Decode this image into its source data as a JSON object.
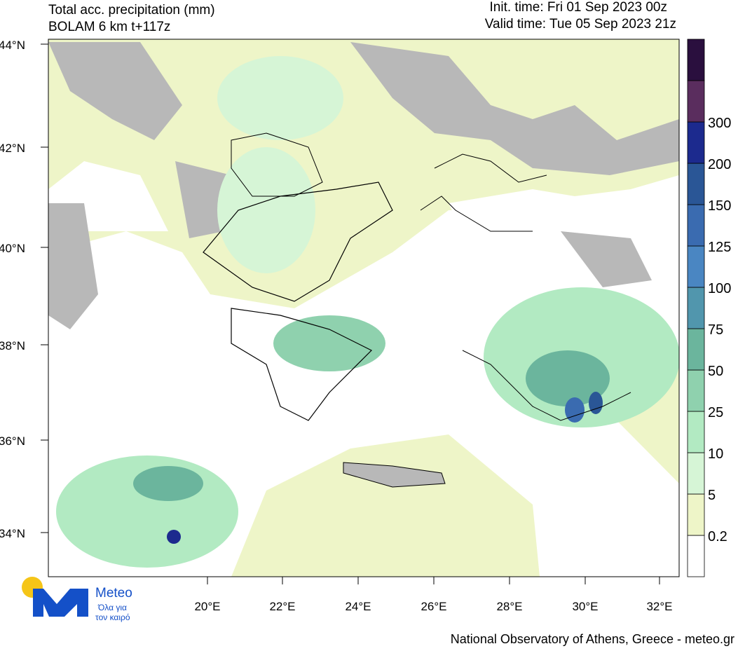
{
  "header": {
    "title": "Total acc. precipitation (mm)",
    "model": "BOLAM 6 km t+117z",
    "init_time": "Init. time: Fri 01 Sep 2023 00z",
    "valid_time": "Valid time: Tue 05 Sep 2023 21z"
  },
  "lat_ticks": [
    "44°N",
    "42°N",
    "40°N",
    "38°N",
    "36°N",
    "34°N"
  ],
  "lon_ticks": [
    "20°E",
    "22°E",
    "24°E",
    "26°E",
    "28°E",
    "30°E",
    "32°E"
  ],
  "colorbar": {
    "labels": [
      "0.2",
      "5",
      "10",
      "25",
      "50",
      "75",
      "100",
      "125",
      "150",
      "200",
      "300"
    ],
    "colors": [
      "#ffffff",
      "#eef5c8",
      "#d6f5d6",
      "#b2eac2",
      "#8fd1ae",
      "#6bb59d",
      "#5196ad",
      "#4a86c2",
      "#3a6bb0",
      "#2a5696",
      "#1c2a8e",
      "#5a2d5e",
      "#2a0f3e"
    ]
  },
  "logo": {
    "name": "Meteo",
    "line1": "Όλα για",
    "line2": "τον καιρό"
  },
  "footer": "National Observatory of Athens, Greece - meteo.gr"
}
